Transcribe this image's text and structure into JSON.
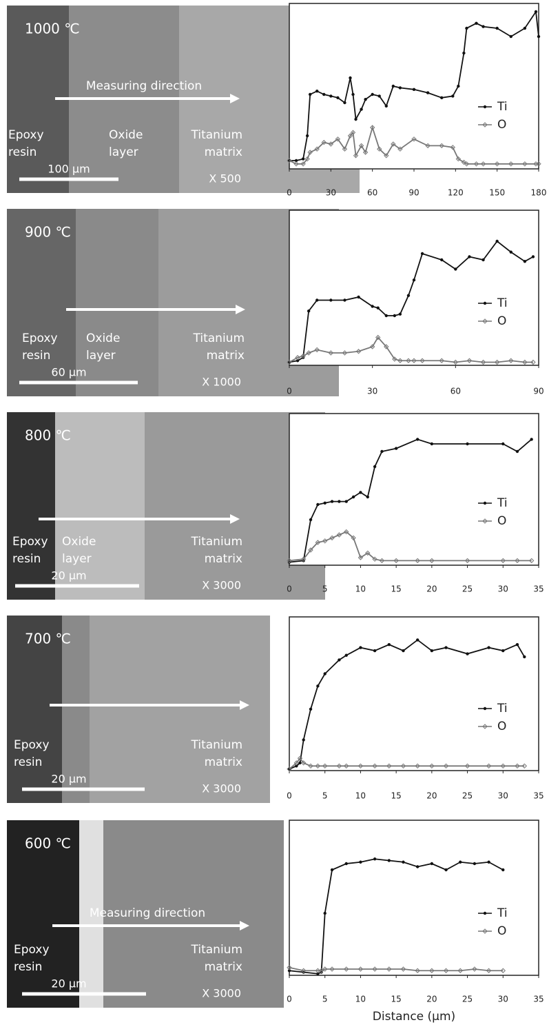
{
  "panels": [
    {
      "temperature": "1000 ℃",
      "direction": "Measuring direction",
      "labels": [
        {
          "lines": [
            "Epoxy",
            "resin"
          ]
        },
        {
          "lines": [
            "Oxide",
            "layer"
          ]
        },
        {
          "lines": [
            "Titanium",
            "matrix"
          ]
        }
      ],
      "scale": "100 μm",
      "magnification": "X 500"
    },
    {
      "temperature": "900 ℃",
      "labels": [
        {
          "lines": [
            "Epoxy",
            "resin"
          ]
        },
        {
          "lines": [
            "Oxide",
            "layer"
          ]
        },
        {
          "lines": [
            "Titanium",
            "matrix"
          ]
        }
      ],
      "scale": "60 μm",
      "magnification": "X 1000"
    },
    {
      "temperature": "800 ℃",
      "labels": [
        {
          "lines": [
            "Epoxy",
            "resin"
          ]
        },
        {
          "lines": [
            "Oxide",
            "layer"
          ]
        },
        {
          "lines": [
            "Titanium",
            "matrix"
          ]
        }
      ],
      "scale": "20 μm",
      "magnification": "X 3000"
    },
    {
      "temperature": "700 ℃",
      "labels": [
        {
          "lines": [
            "Epoxy",
            "resin"
          ]
        },
        {
          "lines": [
            "Titanium",
            "matrix"
          ]
        }
      ],
      "scale": "20 μm",
      "magnification": "X 3000"
    },
    {
      "temperature": "600 ℃",
      "direction": "Measuring direction",
      "labels": [
        {
          "lines": [
            "Epoxy",
            "resin"
          ]
        },
        {
          "lines": [
            "Titanium",
            "matrix"
          ]
        }
      ],
      "scale": "20 μm",
      "magnification": "X 3000"
    }
  ],
  "chart_data": [
    {
      "type": "line",
      "x": [
        0,
        5,
        10,
        13,
        15,
        20,
        25,
        30,
        35,
        40,
        44,
        46,
        48,
        52,
        55,
        60,
        65,
        70,
        75,
        80,
        90,
        100,
        110,
        118,
        122,
        126,
        128,
        135,
        140,
        150,
        160,
        170,
        178,
        180
      ],
      "series": [
        {
          "name": "Ti",
          "color": "#111111",
          "values": [
            5,
            5,
            6,
            20,
            45,
            47,
            45,
            44,
            43,
            40,
            55,
            45,
            30,
            36,
            42,
            45,
            44,
            38,
            50,
            49,
            48,
            46,
            43,
            44,
            50,
            70,
            85,
            88,
            86,
            85,
            80,
            85,
            95,
            80
          ]
        },
        {
          "name": "O",
          "color": "#777777",
          "values": [
            5,
            3,
            3,
            6,
            10,
            12,
            16,
            15,
            18,
            12,
            20,
            22,
            8,
            14,
            10,
            25,
            12,
            8,
            15,
            12,
            18,
            14,
            14,
            13,
            6,
            4,
            3,
            3,
            3,
            3,
            3,
            3,
            3,
            3
          ]
        }
      ],
      "xlim": [
        0,
        180
      ],
      "xticks": [
        0,
        30,
        60,
        90,
        120,
        150,
        180
      ],
      "ylim": [
        0,
        100
      ],
      "legend": "right"
    },
    {
      "type": "line",
      "x": [
        0,
        3,
        5,
        7,
        10,
        15,
        20,
        25,
        30,
        32,
        35,
        38,
        40,
        43,
        45,
        48,
        55,
        60,
        65,
        70,
        75,
        80,
        85,
        88
      ],
      "series": [
        {
          "name": "Ti",
          "color": "#111111",
          "values": [
            2,
            3,
            5,
            35,
            42,
            42,
            42,
            44,
            38,
            37,
            32,
            32,
            33,
            45,
            55,
            72,
            68,
            62,
            70,
            68,
            80,
            73,
            67,
            70
          ]
        },
        {
          "name": "O",
          "color": "#777777",
          "values": [
            2,
            5,
            6,
            8,
            10,
            8,
            8,
            9,
            12,
            18,
            12,
            4,
            3,
            3,
            3,
            3,
            3,
            2,
            3,
            2,
            2,
            3,
            2,
            2
          ]
        }
      ],
      "xlim": [
        0,
        90
      ],
      "xticks": [
        0,
        30,
        60,
        90
      ],
      "ylim": [
        0,
        100
      ],
      "legend": "right"
    },
    {
      "type": "line",
      "x": [
        0,
        2,
        3,
        4,
        5,
        6,
        7,
        8,
        9,
        10,
        11,
        12,
        13,
        15,
        18,
        20,
        25,
        30,
        32,
        34
      ],
      "series": [
        {
          "name": "Ti",
          "color": "#111111",
          "values": [
            2,
            3,
            30,
            40,
            41,
            42,
            42,
            42,
            45,
            48,
            45,
            65,
            75,
            77,
            83,
            80,
            80,
            80,
            75,
            83
          ]
        },
        {
          "name": "O",
          "color": "#777777",
          "values": [
            3,
            4,
            10,
            15,
            16,
            18,
            20,
            22,
            18,
            5,
            8,
            4,
            3,
            3,
            3,
            3,
            3,
            3,
            3,
            3
          ]
        }
      ],
      "xlim": [
        0,
        35
      ],
      "xticks": [
        0,
        5,
        10,
        15,
        20,
        25,
        30,
        35
      ],
      "ylim": [
        0,
        100
      ],
      "legend": "right"
    },
    {
      "type": "line",
      "x": [
        0,
        1,
        1.5,
        2,
        3,
        4,
        5,
        7,
        8,
        10,
        12,
        14,
        16,
        18,
        20,
        22,
        25,
        28,
        30,
        32,
        33
      ],
      "series": [
        {
          "name": "Ti",
          "color": "#111111",
          "values": [
            1,
            3,
            5,
            20,
            40,
            55,
            63,
            72,
            75,
            80,
            78,
            82,
            78,
            85,
            78,
            80,
            76,
            80,
            78,
            82,
            74
          ]
        },
        {
          "name": "O",
          "color": "#777777",
          "values": [
            1,
            5,
            8,
            5,
            3,
            3,
            3,
            3,
            3,
            3,
            3,
            3,
            3,
            3,
            3,
            3,
            3,
            3,
            3,
            3,
            3
          ]
        }
      ],
      "xlim": [
        0,
        35
      ],
      "xticks": [
        0,
        5,
        10,
        15,
        20,
        25,
        30,
        35
      ],
      "ylim": [
        0,
        100
      ],
      "legend": "right"
    },
    {
      "type": "line",
      "x": [
        0,
        2,
        4,
        4.5,
        5,
        6,
        8,
        10,
        12,
        14,
        16,
        18,
        20,
        22,
        24,
        26,
        28,
        30
      ],
      "series": [
        {
          "name": "Ti",
          "color": "#111111",
          "values": [
            3,
            2,
            1,
            2,
            40,
            68,
            72,
            73,
            75,
            74,
            73,
            70,
            72,
            68,
            73,
            72,
            73,
            68
          ]
        },
        {
          "name": "O",
          "color": "#777777",
          "values": [
            5,
            3,
            3,
            3,
            4,
            4,
            4,
            4,
            4,
            4,
            4,
            3,
            3,
            3,
            3,
            4,
            3,
            3
          ]
        }
      ],
      "xlim": [
        0,
        35
      ],
      "xticks": [
        0,
        5,
        10,
        15,
        20,
        25,
        30,
        35
      ],
      "ylim": [
        0,
        100
      ],
      "legend": "right",
      "x_label": "Distance (μm)"
    }
  ]
}
